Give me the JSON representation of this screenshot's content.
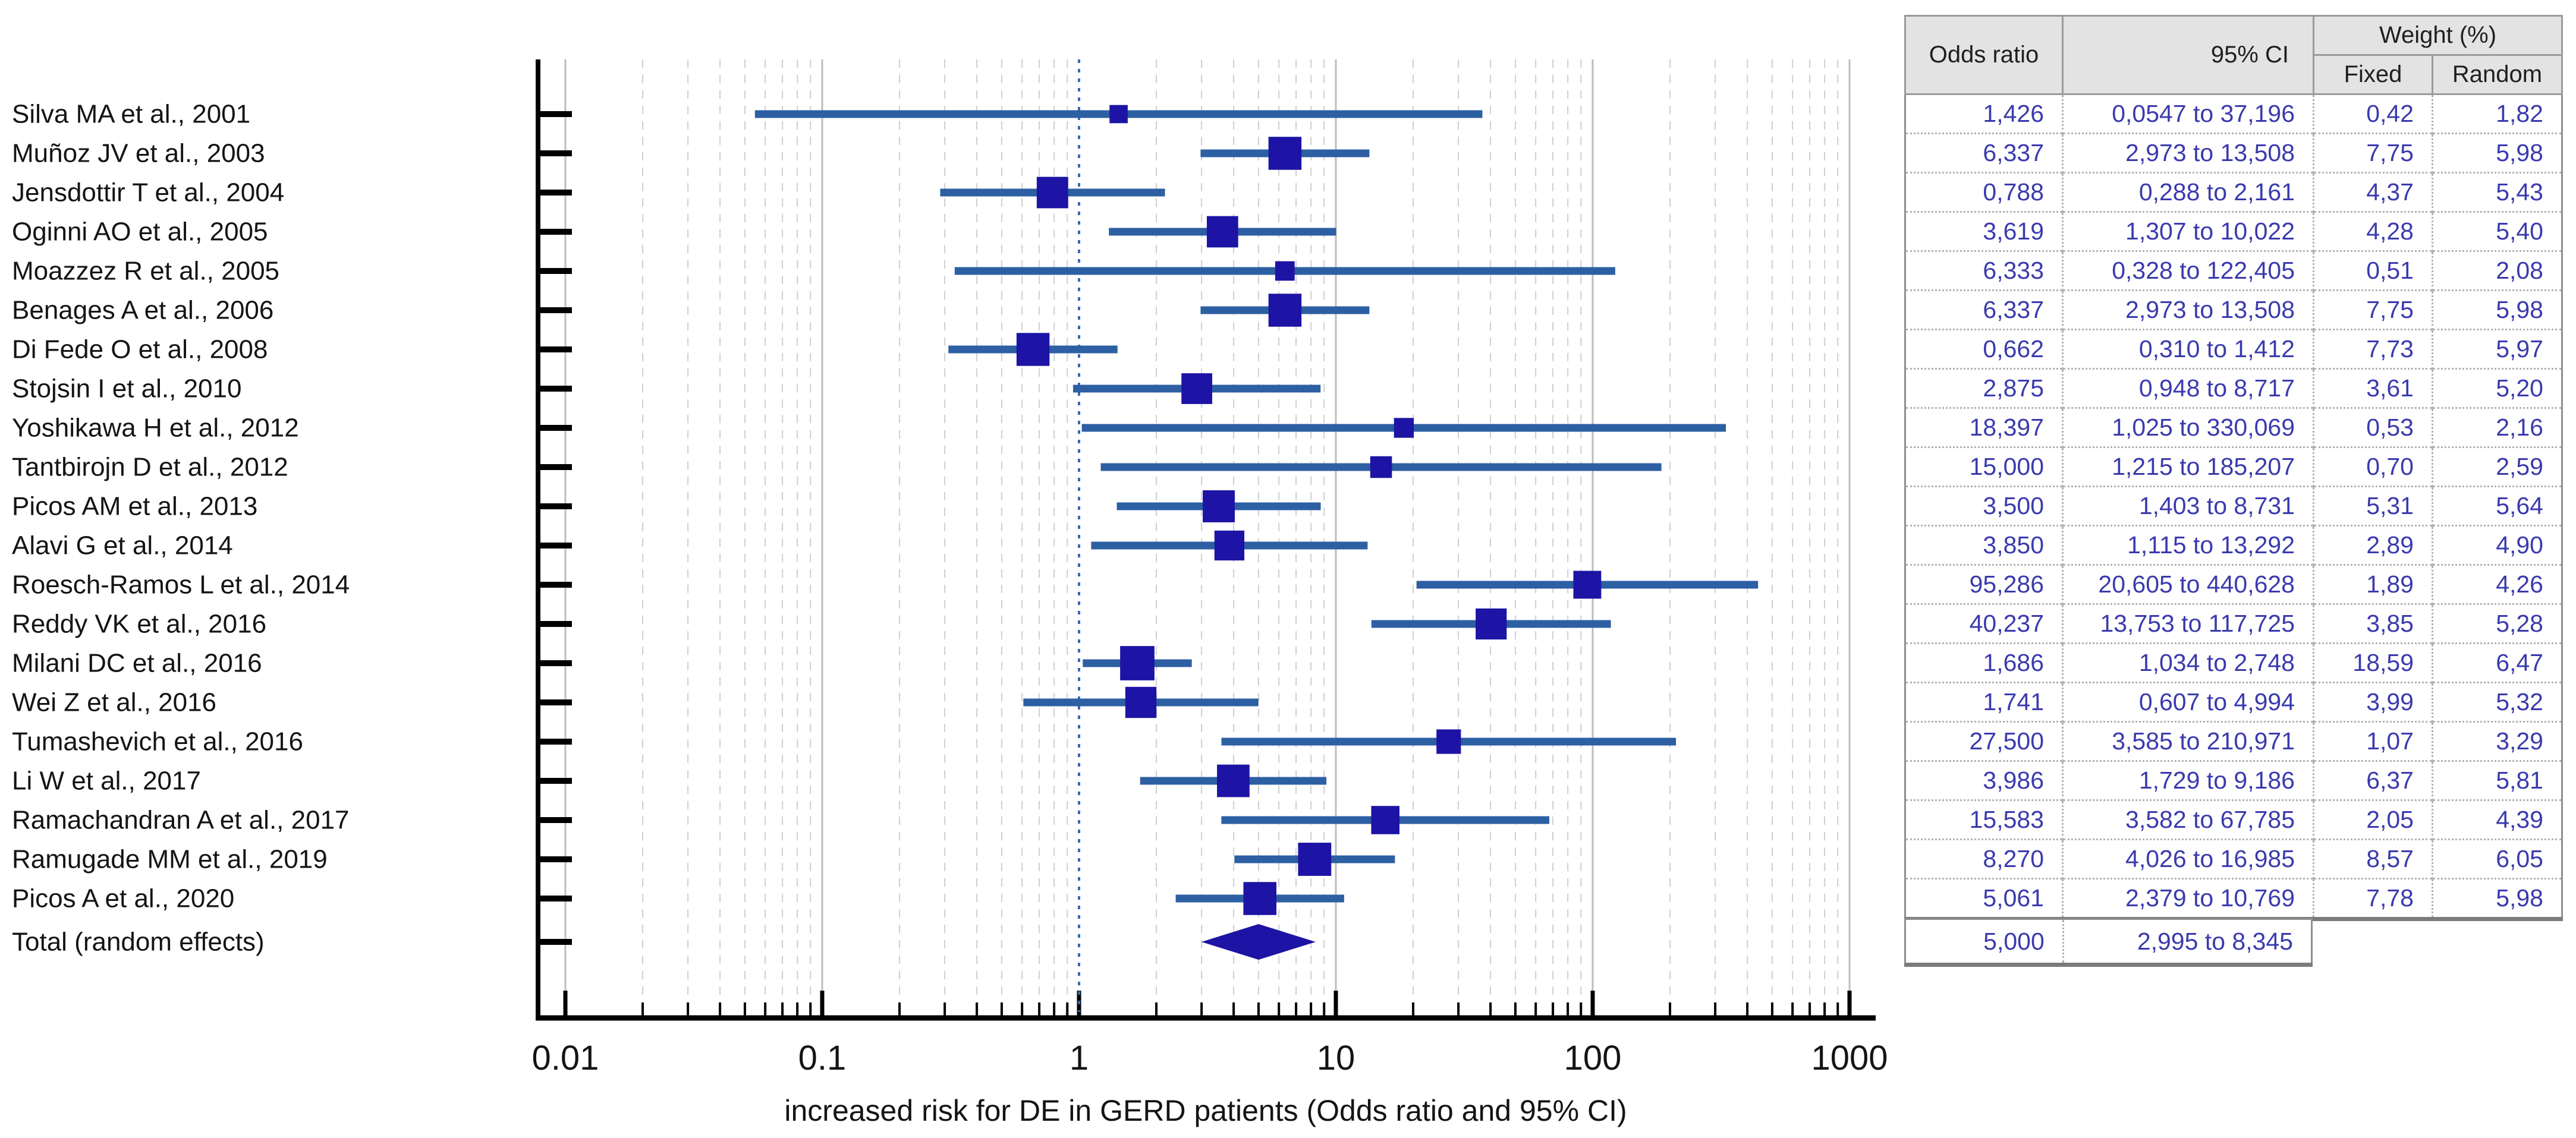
{
  "chart_data": {
    "type": "forest",
    "xlabel": "increased risk for DE in GERD patients (Odds ratio and 95% CI)",
    "x_scale": "log",
    "x_range": [
      0.01,
      1000
    ],
    "x_tick_values": [
      0.01,
      0.1,
      1,
      10,
      100,
      1000
    ],
    "x_tick_labels": [
      "0.01",
      "0.1",
      "1",
      "10",
      "100",
      "1000"
    ],
    "reference_line": 1,
    "grid": true,
    "studies": [
      {
        "label": "Silva MA et al., 2001",
        "or": 1.426,
        "ci_low": 0.0547,
        "ci_high": 37.196,
        "weight_fixed": 0.42,
        "weight_random": 1.82
      },
      {
        "label": "Muñoz JV et al., 2003",
        "or": 6.337,
        "ci_low": 2.973,
        "ci_high": 13.508,
        "weight_fixed": 7.75,
        "weight_random": 5.98
      },
      {
        "label": "Jensdottir T et al., 2004",
        "or": 0.788,
        "ci_low": 0.288,
        "ci_high": 2.161,
        "weight_fixed": 4.37,
        "weight_random": 5.43
      },
      {
        "label": "Oginni AO et al., 2005",
        "or": 3.619,
        "ci_low": 1.307,
        "ci_high": 10.022,
        "weight_fixed": 4.28,
        "weight_random": 5.4
      },
      {
        "label": "Moazzez R et al., 2005",
        "or": 6.333,
        "ci_low": 0.328,
        "ci_high": 122.405,
        "weight_fixed": 0.51,
        "weight_random": 2.08
      },
      {
        "label": "Benages A et al., 2006",
        "or": 6.337,
        "ci_low": 2.973,
        "ci_high": 13.508,
        "weight_fixed": 7.75,
        "weight_random": 5.98
      },
      {
        "label": "Di Fede O et al., 2008",
        "or": 0.662,
        "ci_low": 0.31,
        "ci_high": 1.412,
        "weight_fixed": 7.73,
        "weight_random": 5.97
      },
      {
        "label": "Stojsin I et al., 2010",
        "or": 2.875,
        "ci_low": 0.948,
        "ci_high": 8.717,
        "weight_fixed": 3.61,
        "weight_random": 5.2
      },
      {
        "label": "Yoshikawa H et al., 2012",
        "or": 18.397,
        "ci_low": 1.025,
        "ci_high": 330.069,
        "weight_fixed": 0.53,
        "weight_random": 2.16
      },
      {
        "label": "Tantbirojn D et al., 2012",
        "or": 15.0,
        "ci_low": 1.215,
        "ci_high": 185.207,
        "weight_fixed": 0.7,
        "weight_random": 2.59
      },
      {
        "label": "Picos AM et al., 2013",
        "or": 3.5,
        "ci_low": 1.403,
        "ci_high": 8.731,
        "weight_fixed": 5.31,
        "weight_random": 5.64
      },
      {
        "label": "Alavi G et al., 2014",
        "or": 3.85,
        "ci_low": 1.115,
        "ci_high": 13.292,
        "weight_fixed": 2.89,
        "weight_random": 4.9
      },
      {
        "label": "Roesch-Ramos L et al., 2014",
        "or": 95.286,
        "ci_low": 20.605,
        "ci_high": 440.628,
        "weight_fixed": 1.89,
        "weight_random": 4.26
      },
      {
        "label": "Reddy VK et al., 2016",
        "or": 40.237,
        "ci_low": 13.753,
        "ci_high": 117.725,
        "weight_fixed": 3.85,
        "weight_random": 5.28
      },
      {
        "label": "Milani DC et al., 2016",
        "or": 1.686,
        "ci_low": 1.034,
        "ci_high": 2.748,
        "weight_fixed": 18.59,
        "weight_random": 6.47
      },
      {
        "label": "Wei Z et al., 2016",
        "or": 1.741,
        "ci_low": 0.607,
        "ci_high": 4.994,
        "weight_fixed": 3.99,
        "weight_random": 5.32
      },
      {
        "label": "Tumashevich et al., 2016",
        "or": 27.5,
        "ci_low": 3.585,
        "ci_high": 210.971,
        "weight_fixed": 1.07,
        "weight_random": 3.29
      },
      {
        "label": "Li W et al., 2017",
        "or": 3.986,
        "ci_low": 1.729,
        "ci_high": 9.186,
        "weight_fixed": 6.37,
        "weight_random": 5.81
      },
      {
        "label": "Ramachandran A et al., 2017",
        "or": 15.583,
        "ci_low": 3.582,
        "ci_high": 67.785,
        "weight_fixed": 2.05,
        "weight_random": 4.39
      },
      {
        "label": "Ramugade MM et al., 2019",
        "or": 8.27,
        "ci_low": 4.026,
        "ci_high": 16.985,
        "weight_fixed": 8.57,
        "weight_random": 6.05
      },
      {
        "label": "Picos A et al., 2020",
        "or": 5.061,
        "ci_low": 2.379,
        "ci_high": 10.769,
        "weight_fixed": 7.78,
        "weight_random": 5.98
      }
    ],
    "total": {
      "label": "Total (random effects)",
      "or": 5.0,
      "ci_low": 2.995,
      "ci_high": 8.345
    }
  },
  "table": {
    "header": {
      "odds_ratio": "Odds ratio",
      "ci": "95% CI",
      "weight": "Weight (%)",
      "fixed": "Fixed",
      "random": "Random"
    },
    "rows": [
      [
        "1,426",
        "0,0547 to 37,196",
        "0,42",
        "1,82"
      ],
      [
        "6,337",
        "2,973 to 13,508",
        "7,75",
        "5,98"
      ],
      [
        "0,788",
        "0,288 to 2,161",
        "4,37",
        "5,43"
      ],
      [
        "3,619",
        "1,307 to 10,022",
        "4,28",
        "5,40"
      ],
      [
        "6,333",
        "0,328 to 122,405",
        "0,51",
        "2,08"
      ],
      [
        "6,337",
        "2,973 to 13,508",
        "7,75",
        "5,98"
      ],
      [
        "0,662",
        "0,310 to 1,412",
        "7,73",
        "5,97"
      ],
      [
        "2,875",
        "0,948 to 8,717",
        "3,61",
        "5,20"
      ],
      [
        "18,397",
        "1,025 to 330,069",
        "0,53",
        "2,16"
      ],
      [
        "15,000",
        "1,215 to 185,207",
        "0,70",
        "2,59"
      ],
      [
        "3,500",
        "1,403 to 8,731",
        "5,31",
        "5,64"
      ],
      [
        "3,850",
        "1,115 to 13,292",
        "2,89",
        "4,90"
      ],
      [
        "95,286",
        "20,605 to 440,628",
        "1,89",
        "4,26"
      ],
      [
        "40,237",
        "13,753 to 117,725",
        "3,85",
        "5,28"
      ],
      [
        "1,686",
        "1,034 to 2,748",
        "18,59",
        "6,47"
      ],
      [
        "1,741",
        "0,607 to 4,994",
        "3,99",
        "5,32"
      ],
      [
        "27,500",
        "3,585 to 210,971",
        "1,07",
        "3,29"
      ],
      [
        "3,986",
        "1,729 to 9,186",
        "6,37",
        "5,81"
      ],
      [
        "15,583",
        "3,582 to 67,785",
        "2,05",
        "4,39"
      ],
      [
        "8,270",
        "4,026 to 16,985",
        "8,57",
        "6,05"
      ],
      [
        "5,061",
        "2,379 to 10,769",
        "7,78",
        "5,98"
      ]
    ],
    "total_row": [
      "5,000",
      "2,995 to 8,345"
    ]
  },
  "colors": {
    "box": "#1d14a5",
    "ci_line": "#2d5fa3",
    "reference_line": "#3668b0",
    "grid_minor": "#cfcfcf",
    "grid_major": "#bdbdbd",
    "axis": "#000000",
    "study_text": "#141414",
    "cell_text": "#3a3aae",
    "header_bg": "#e3e3e3"
  }
}
